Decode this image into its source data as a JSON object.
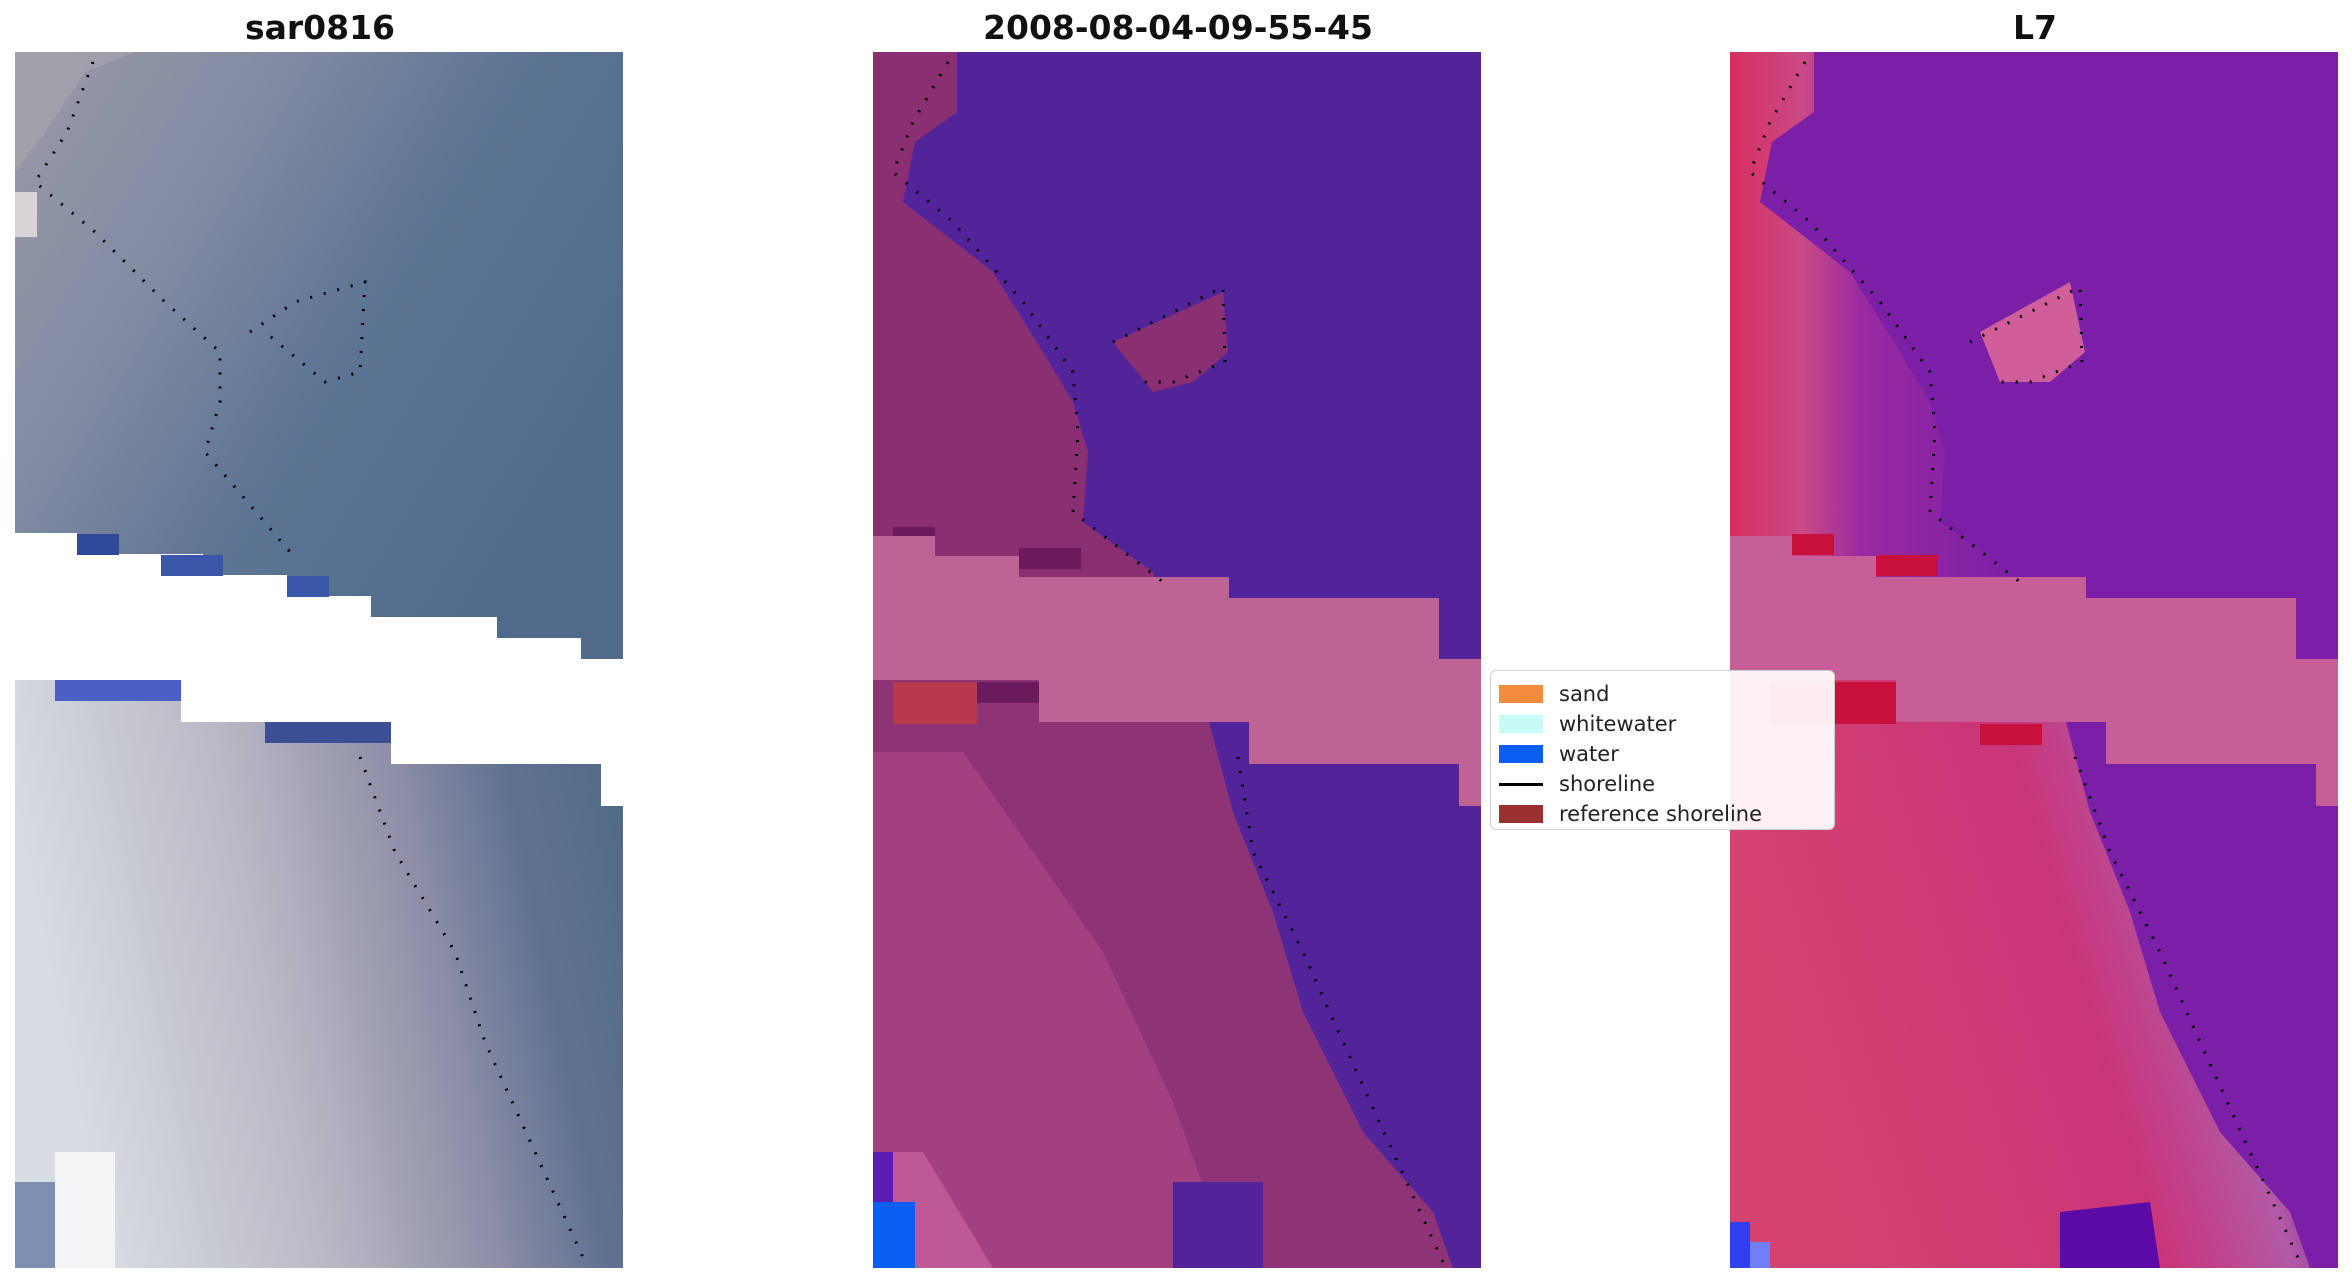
{
  "titles": {
    "left": "sar0816",
    "middle": "2008-08-04-09-55-45",
    "right": "L7"
  },
  "legend": {
    "items": [
      {
        "label": "sand",
        "color": "#f28b3c",
        "kind": "patch"
      },
      {
        "label": "whitewater",
        "color": "#c8fbf6",
        "kind": "patch"
      },
      {
        "label": "water",
        "color": "#0a5ef0",
        "kind": "patch"
      },
      {
        "label": "shoreline",
        "color": "#000000",
        "kind": "line"
      },
      {
        "label": "reference shoreline",
        "color": "#9b3030",
        "kind": "patch"
      }
    ]
  },
  "colors": {
    "sar_water": "#546f8e",
    "sar_land": "#9a9aae",
    "sar_bright": "#c9cfd6",
    "class_water": "#53239a",
    "class_land": "#8a3072",
    "class_stripe": "#bd6396",
    "l7_water": "#7a1fa6",
    "l7_land": "#d2306c",
    "l7_stripe": "#c75e97",
    "shoreline_dots": "#000000"
  }
}
